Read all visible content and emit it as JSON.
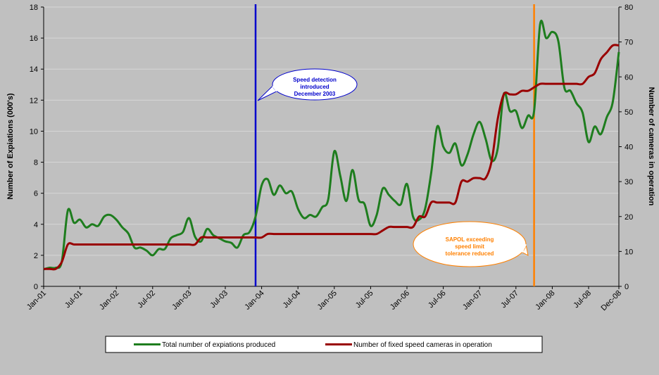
{
  "chart_data": {
    "type": "line",
    "y_label": "Number of Expiations (000's)",
    "y2_label": "Number of cameras in operation",
    "categories": [
      "Jan-01",
      null,
      null,
      null,
      null,
      null,
      "Jul-01",
      null,
      null,
      null,
      null,
      null,
      "Jan-02",
      null,
      null,
      null,
      null,
      null,
      "Jul-02",
      null,
      null,
      null,
      null,
      null,
      "Jan-03",
      null,
      null,
      null,
      null,
      null,
      "Jul-03",
      null,
      null,
      null,
      null,
      null,
      "Jan-04",
      null,
      null,
      null,
      null,
      null,
      "Jul-04",
      null,
      null,
      null,
      null,
      null,
      "Jan-05",
      null,
      null,
      null,
      null,
      null,
      "Jul-05",
      null,
      null,
      null,
      null,
      null,
      "Jan-06",
      null,
      null,
      null,
      null,
      null,
      "Jul-06",
      null,
      null,
      null,
      null,
      null,
      "Jan-07",
      null,
      null,
      null,
      null,
      null,
      "Jul-07",
      null,
      null,
      null,
      null,
      null,
      "Jan-08",
      null,
      null,
      null,
      null,
      null,
      "Jul-08",
      null,
      null,
      null,
      null,
      "Dec-08"
    ],
    "series": [
      {
        "name": "Total number of expiations produced",
        "color": "#1e7d1e",
        "axis": "y",
        "values": [
          1.1,
          1.2,
          1.2,
          1.6,
          4.9,
          4.1,
          4.3,
          3.8,
          4.0,
          3.9,
          4.5,
          4.6,
          4.3,
          3.8,
          3.4,
          2.5,
          2.5,
          2.3,
          2.0,
          2.4,
          2.4,
          3.1,
          3.3,
          3.5,
          4.4,
          3.2,
          2.9,
          3.7,
          3.3,
          3.1,
          2.9,
          2.8,
          2.5,
          3.3,
          3.5,
          4.5,
          6.5,
          6.9,
          5.9,
          6.5,
          6.0,
          6.1,
          5.0,
          4.4,
          4.6,
          4.5,
          5.1,
          5.6,
          8.7,
          7.1,
          5.5,
          7.5,
          5.6,
          5.3,
          3.9,
          4.6,
          6.3,
          5.9,
          5.5,
          5.3,
          6.6,
          4.5,
          4.3,
          5.0,
          7.3,
          10.3,
          9.0,
          8.6,
          9.2,
          7.8,
          8.5,
          9.8,
          10.6,
          9.5,
          8.1,
          8.9,
          12.4,
          11.3,
          11.3,
          10.2,
          11.0,
          11.3,
          16.9,
          16.0,
          16.4,
          15.8,
          12.8,
          12.6,
          11.8,
          11.2,
          9.3,
          10.3,
          9.8,
          10.9,
          11.9,
          15.1
        ]
      },
      {
        "name": "Number of fixed speed cameras in operation",
        "color": "#990000",
        "axis": "y2",
        "values": [
          5,
          5,
          5,
          7,
          12,
          12,
          12,
          12,
          12,
          12,
          12,
          12,
          12,
          12,
          12,
          12,
          12,
          12,
          12,
          12,
          12,
          12,
          12,
          12,
          12,
          12,
          14,
          14,
          14,
          14,
          14,
          14,
          14,
          14,
          14,
          14,
          14,
          15,
          15,
          15,
          15,
          15,
          15,
          15,
          15,
          15,
          15,
          15,
          15,
          15,
          15,
          15,
          15,
          15,
          15,
          15,
          16,
          17,
          17,
          17,
          17,
          17,
          20,
          20,
          24,
          24,
          24,
          24,
          24,
          30,
          30,
          31,
          31,
          31,
          36,
          48,
          55,
          55,
          55,
          56,
          56,
          57,
          58,
          58,
          58,
          58,
          58,
          58,
          58,
          58,
          60,
          61,
          65,
          67,
          69,
          69
        ]
      }
    ],
    "ylim": [
      0,
      18
    ],
    "yticks": [
      0,
      2,
      4,
      6,
      8,
      10,
      12,
      14,
      16,
      18
    ],
    "y2lim": [
      0,
      80
    ],
    "y2ticks": [
      0,
      10,
      20,
      30,
      40,
      50,
      60,
      70,
      80
    ],
    "grid": true,
    "legend": "bottom",
    "annotations": [
      {
        "at": 35,
        "color": "#0000cc",
        "lines": [
          "Speed detection",
          "introduced",
          "December 2003"
        ]
      },
      {
        "at": 81,
        "color": "#ff8000",
        "lines": [
          "SAPOL exceeding",
          "speed limit",
          "tolerance reduced"
        ]
      }
    ]
  }
}
